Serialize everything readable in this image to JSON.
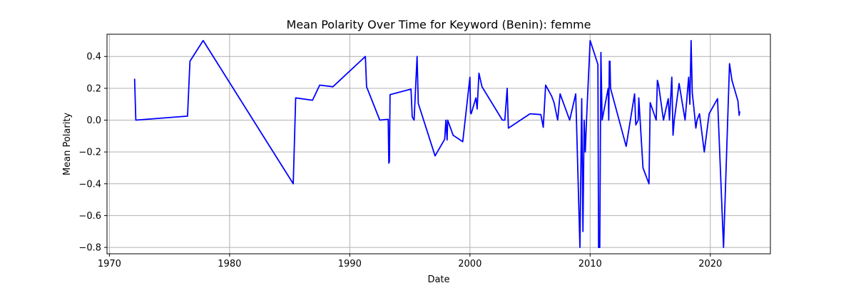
{
  "chart_data": {
    "type": "line",
    "title": "Mean Polarity Over Time for Keyword (Benin): femme",
    "xlabel": "Date",
    "ylabel": "Mean Polarity",
    "xlim": [
      1969.8,
      2025.0
    ],
    "ylim": [
      -0.84,
      0.54
    ],
    "xticks": [
      1970,
      1980,
      1990,
      2000,
      2010,
      2020
    ],
    "xtick_labels": [
      "1970",
      "1980",
      "1990",
      "2000",
      "2010",
      "2020"
    ],
    "yticks": [
      -0.8,
      -0.6,
      -0.4,
      -0.2,
      0.0,
      0.2,
      0.4
    ],
    "ytick_labels": [
      "−0.8",
      "−0.6",
      "−0.4",
      "−0.2",
      "0.0",
      "0.2",
      "0.4"
    ],
    "grid": true,
    "line_color": "#0000ff",
    "series": [
      {
        "name": "",
        "x": [
          1972.1,
          1972.2,
          1976.5,
          1976.7,
          1977.8,
          1985.3,
          1985.5,
          1986.9,
          1987.5,
          1988.6,
          1991.3,
          1991.4,
          1992.5,
          1993.2,
          1993.25,
          1993.3,
          1993.35,
          1995.1,
          1995.2,
          1995.35,
          1995.6,
          1995.7,
          1997.1,
          1997.9,
          1998.0,
          1998.1,
          1998.15,
          1998.6,
          1999.4,
          2000.0,
          2000.05,
          2000.1,
          2000.5,
          2000.6,
          2000.75,
          2001.0,
          2002.7,
          2002.9,
          2003.1,
          2003.2,
          2005.0,
          2005.9,
          2006.1,
          2006.3,
          2006.8,
          2007.0,
          2007.3,
          2007.5,
          2008.3,
          2008.8,
          2009.15,
          2009.3,
          2009.4,
          2009.5,
          2009.6,
          2009.7,
          2010.0,
          2010.65,
          2010.7,
          2010.8,
          2010.9,
          2011.0,
          2011.5,
          2011.55,
          2011.6,
          2011.65,
          2011.7,
          2013.0,
          2013.7,
          2013.8,
          2014.0,
          2014.05,
          2014.4,
          2014.9,
          2015.0,
          2015.5,
          2015.6,
          2015.7,
          2016.1,
          2016.5,
          2016.6,
          2016.8,
          2016.9,
          2017.0,
          2017.4,
          2017.9,
          2018.2,
          2018.3,
          2018.4,
          2018.5,
          2018.6,
          2018.8,
          2018.9,
          2019.1,
          2019.5,
          2019.9,
          2020.6,
          2021.1,
          2021.6,
          2021.8,
          2022.3,
          2022.4,
          2022.45
        ],
        "y": [
          0.26,
          0.0,
          0.025,
          0.37,
          0.5,
          -0.4,
          0.14,
          0.125,
          0.22,
          0.21,
          0.4,
          0.21,
          0.0,
          0.005,
          -0.27,
          -0.26,
          0.16,
          0.195,
          0.02,
          0.0,
          0.4,
          0.105,
          -0.225,
          -0.12,
          0.0,
          -0.125,
          0.0,
          -0.095,
          -0.135,
          0.27,
          0.05,
          0.04,
          0.14,
          0.07,
          0.295,
          0.21,
          0.0,
          0.0,
          0.2,
          -0.05,
          0.04,
          0.035,
          -0.045,
          0.22,
          0.15,
          0.11,
          0.0,
          0.165,
          0.0,
          0.165,
          -0.8,
          0.135,
          -0.7,
          0.0,
          -0.2,
          0.0,
          0.5,
          0.35,
          -0.8,
          -0.8,
          0.425,
          0.0,
          0.2,
          0.0,
          0.37,
          0.37,
          0.2,
          -0.165,
          0.165,
          -0.03,
          0.0,
          0.14,
          -0.3,
          -0.4,
          0.11,
          0.0,
          0.25,
          0.22,
          0.0,
          0.135,
          0.0,
          0.27,
          -0.095,
          0.0,
          0.23,
          0.0,
          0.27,
          0.1,
          0.5,
          0.17,
          0.1,
          -0.05,
          0.0,
          0.04,
          -0.2,
          0.04,
          0.135,
          -0.8,
          0.355,
          0.25,
          0.12,
          0.03,
          0.055
        ]
      }
    ]
  }
}
